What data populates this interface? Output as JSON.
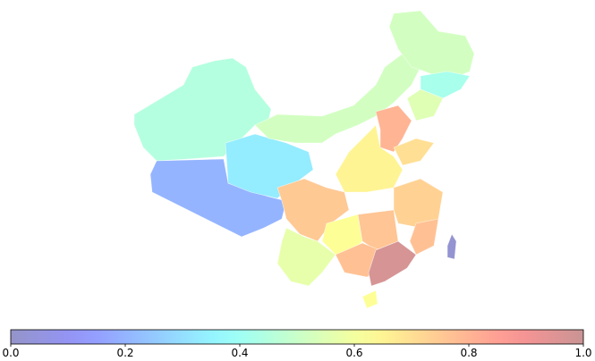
{
  "map": {
    "regions": [
      {
        "value": 0.45
      },
      {
        "value": 0.2
      },
      {
        "value": 0.33
      },
      {
        "value": 0.52
      },
      {
        "value": 0.52
      },
      {
        "value": 0.42
      },
      {
        "value": 0.55
      },
      {
        "value": 0.8
      },
      {
        "value": 0.7
      },
      {
        "value": 0.65
      },
      {
        "value": 0.75
      },
      {
        "value": 0.57
      },
      {
        "value": 0.62
      },
      {
        "value": 0.76
      },
      {
        "value": 0.73
      },
      {
        "value": 0.77
      },
      {
        "value": 0.77
      },
      {
        "value": 0.97
      },
      {
        "value": 0.62
      },
      {
        "value": 0.02
      }
    ],
    "colorbar": {
      "lim": [
        0,
        1
      ],
      "ticks": [
        {
          "value": 0,
          "label": "0.0"
        },
        0.2,
        0.4,
        0.6,
        0.8,
        {
          "value": 1,
          "label": "1.0"
        }
      ]
    }
  }
}
